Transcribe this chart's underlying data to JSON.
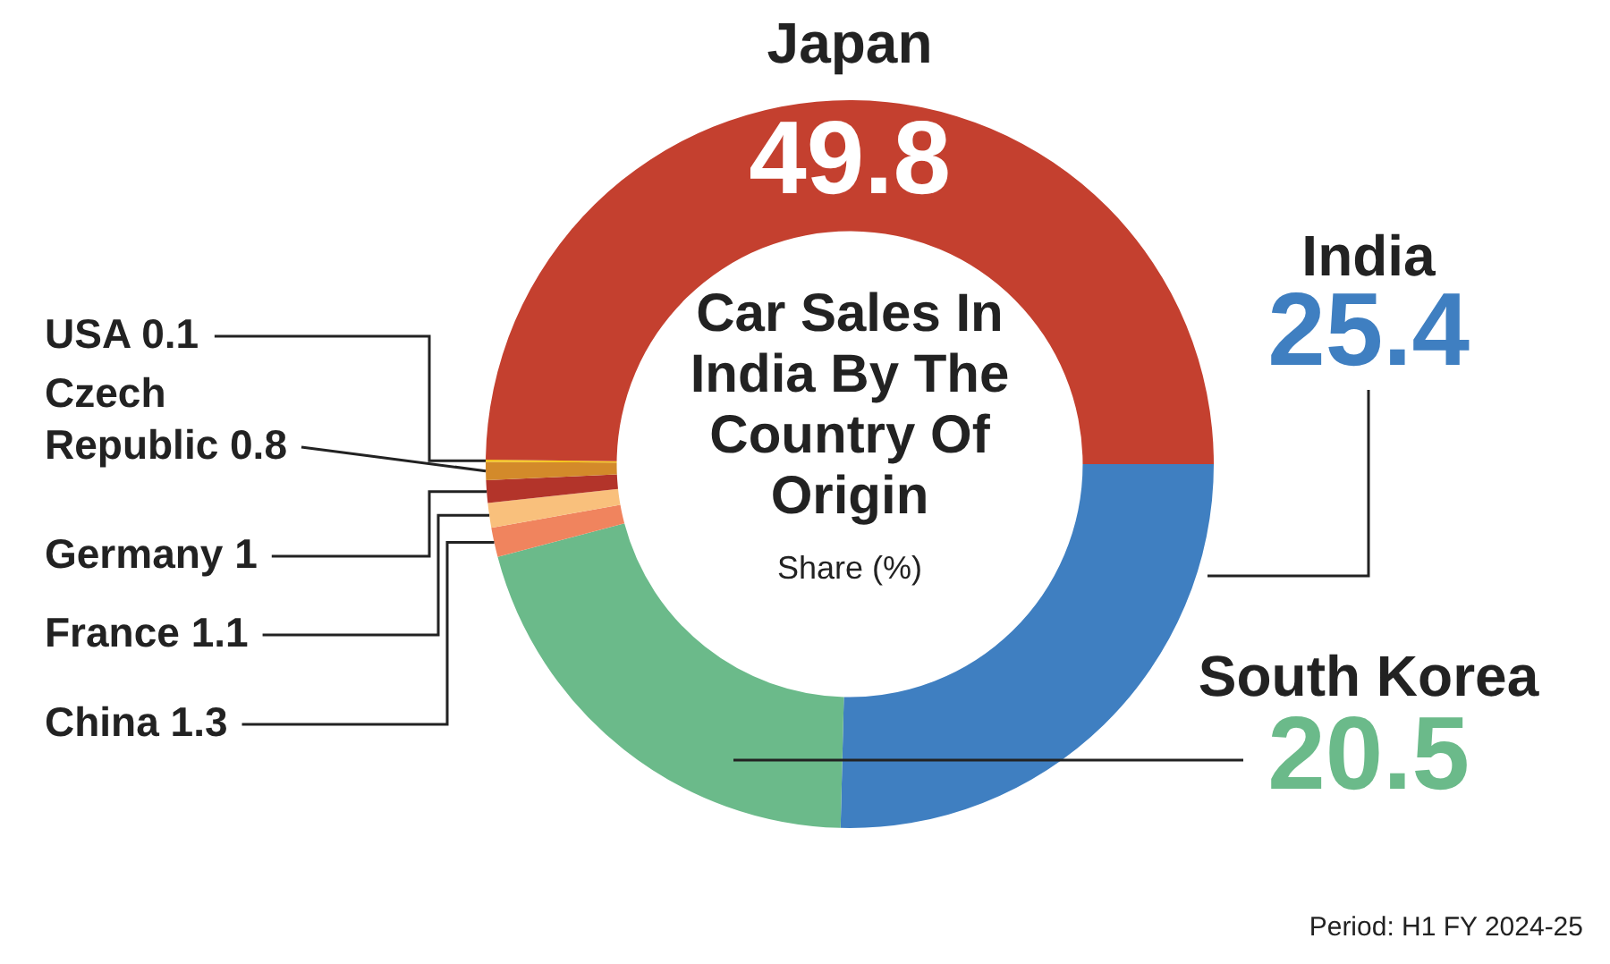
{
  "chart_data": {
    "type": "donut",
    "title": "Car Sales In India By The Country Of Origin",
    "subtitle": "Share (%)",
    "categories": [
      "India",
      "South Korea",
      "China 1.3",
      "France 1.1",
      "Germany 1",
      "Czech Republic 0.8",
      "USA 0.1",
      "Japan"
    ],
    "value_labels": [
      "25.4",
      "20.5",
      null,
      null,
      null,
      null,
      null,
      "49.8"
    ],
    "values": [
      25.4,
      20.5,
      1.3,
      1.1,
      1,
      0.8,
      0.1,
      49.8
    ],
    "colors": [
      "#3f7fc1",
      "#6bba8a",
      "#f0845e",
      "#f9c07c",
      "#b3342a",
      "#d38a2a",
      "#f5c518",
      "#c4402f"
    ],
    "legend": false,
    "annotations": [
      "Period: H1 FY 2024-25"
    ]
  }
}
